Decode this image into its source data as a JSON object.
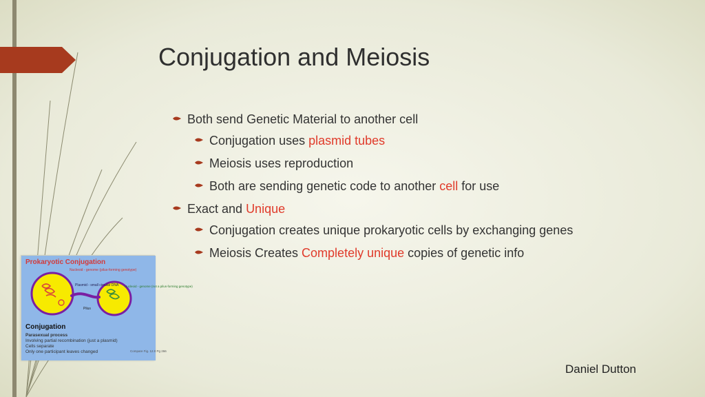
{
  "colors": {
    "background_inner": "#f6f6ec",
    "background_outer": "#dcddc4",
    "accent": "#a73a1e",
    "left_bar": "#8d8870",
    "text": "#2f2f2f",
    "highlight": "#e03a2a",
    "grass_stroke": "#8b8a6f",
    "diagram_bg": "#8fb7e8",
    "diagram_cell_fill": "#f7ea00",
    "diagram_cell_stroke": "#7a1fa2",
    "diagram_nuc_red": "#d9453a",
    "diagram_nuc_green": "#3f8f3a",
    "diagram_title": "#d33a3a"
  },
  "title": "Conjugation and Meiosis",
  "author": "Daniel Dutton",
  "bullets": [
    {
      "segments": [
        {
          "text": "Both send Genetic Material to another cell",
          "hl": false
        }
      ],
      "children": [
        {
          "segments": [
            {
              "text": "Conjugation uses ",
              "hl": false
            },
            {
              "text": "plasmid tubes",
              "hl": true
            }
          ]
        },
        {
          "segments": [
            {
              "text": "Meiosis uses reproduction",
              "hl": false
            }
          ]
        },
        {
          "segments": [
            {
              "text": "Both are sending genetic code to another ",
              "hl": false
            },
            {
              "text": "cell",
              "hl": true
            },
            {
              "text": " for use",
              "hl": false
            }
          ]
        }
      ]
    },
    {
      "segments": [
        {
          "text": "Exact and ",
          "hl": false
        },
        {
          "text": "Unique",
          "hl": true
        }
      ],
      "children": [
        {
          "segments": [
            {
              "text": "Conjugation creates unique prokaryotic cells by exchanging genes",
              "hl": false
            }
          ]
        },
        {
          "segments": [
            {
              "text": "Meiosis Creates ",
              "hl": false
            },
            {
              "text": "Completely unique",
              "hl": true
            },
            {
              "text": " copies of genetic info",
              "hl": false
            }
          ]
        }
      ]
    }
  ],
  "diagram": {
    "title": "Prokaryotic Conjugation",
    "subtitle": "Conjugation",
    "label_nucleoid": "Nucleoid - genome (pilus-forming genotype)",
    "label_plasmid": "Plasmid - small circular DNA",
    "label_pilus": "Pilus",
    "label_right": "Nucleoid - genome (not a pilus-forming genotype)",
    "lines": [
      "Parasexual process",
      "Involving partial recombination (just a plasmid)",
      "Cells separate",
      "Only one participant leaves changed"
    ],
    "compare": "Compare Fig. 12.0 Pg 266"
  }
}
